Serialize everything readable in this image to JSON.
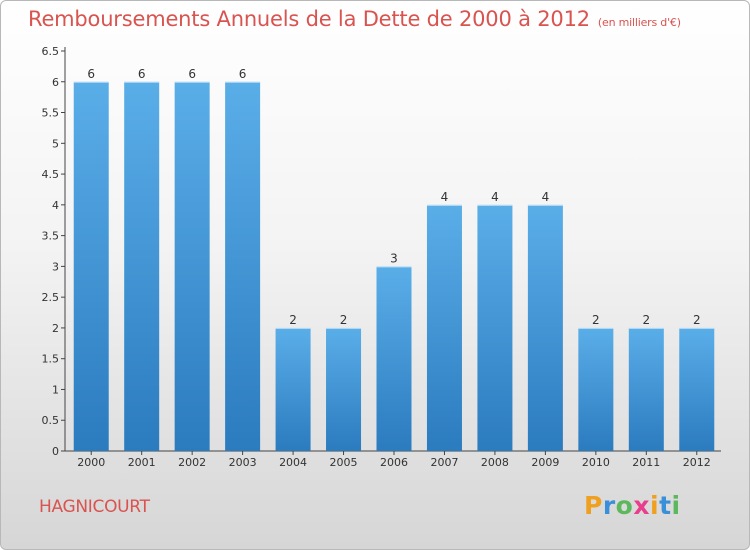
{
  "title": "Remboursements Annuels de la Dette de 2000 à 2012",
  "unit": "(en milliers d'€)",
  "place": "HAGNICOURT",
  "logo": {
    "text": "Proxiti",
    "letters": [
      {
        "ch": "P",
        "color": "#f0a020"
      },
      {
        "ch": "r",
        "color": "#3a8fd9"
      },
      {
        "ch": "o",
        "color": "#5cb85c"
      },
      {
        "ch": "x",
        "color": "#e83e8c"
      },
      {
        "ch": "i",
        "color": "#f0a020"
      },
      {
        "ch": "t",
        "color": "#3a8fd9"
      },
      {
        "ch": "i",
        "color": "#5cb85c"
      }
    ]
  },
  "colors": {
    "bar_light": "#5aaee8",
    "bar_dark": "#2b7bbf",
    "title": "#d9534f"
  },
  "chart_data": {
    "type": "bar",
    "categories": [
      "2000",
      "2001",
      "2002",
      "2003",
      "2004",
      "2005",
      "2006",
      "2007",
      "2008",
      "2009",
      "2010",
      "2011",
      "2012"
    ],
    "values": [
      6,
      6,
      6,
      6,
      2,
      2,
      3,
      4,
      4,
      4,
      2,
      2,
      2
    ],
    "value_labels": [
      "6",
      "6",
      "6",
      "6",
      "2",
      "2",
      "3",
      "4",
      "4",
      "4",
      "2",
      "2",
      "2"
    ],
    "yticks": [
      "0",
      "0.5",
      "1",
      "1.5",
      "2",
      "2.5",
      "3",
      "3.5",
      "4",
      "4.5",
      "5",
      "5.5",
      "6",
      "6.5"
    ],
    "ylim": [
      0,
      6.5
    ],
    "grid": false
  }
}
